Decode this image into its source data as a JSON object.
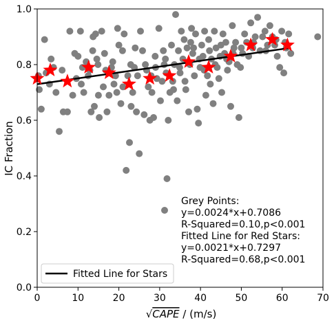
{
  "chart_data": {
    "type": "scatter",
    "xlabel_prefix": "√",
    "xlabel_var": "CAPE",
    "xlabel_suffix": " / (m/s)",
    "ylabel": "IC Fraction",
    "xlim": [
      0,
      70
    ],
    "ylim": [
      0.0,
      1.0
    ],
    "xticks": [
      "0",
      "10",
      "20",
      "30",
      "40",
      "50",
      "60",
      "70"
    ],
    "yticks": [
      "0.0",
      "0.2",
      "0.4",
      "0.6",
      "0.8",
      "1.0"
    ],
    "colors": {
      "grey": "#808080",
      "star": "#ff0000",
      "line": "#000000"
    },
    "grey_points": [
      [
        0.3,
        0.76
      ],
      [
        0.5,
        0.71
      ],
      [
        1.0,
        0.64
      ],
      [
        1.8,
        0.89
      ],
      [
        3.4,
        0.82
      ],
      [
        4.0,
        0.79
      ],
      [
        5.4,
        0.56
      ],
      [
        6.1,
        0.78
      ],
      [
        6.4,
        0.63
      ],
      [
        7.4,
        0.63
      ],
      [
        8.0,
        0.92
      ],
      [
        8.7,
        0.69
      ],
      [
        9.2,
        0.84
      ],
      [
        10.0,
        0.83
      ],
      [
        10.6,
        0.92
      ],
      [
        10.8,
        0.73
      ],
      [
        11.4,
        0.7
      ],
      [
        12.0,
        0.81
      ],
      [
        12.5,
        0.76
      ],
      [
        13.2,
        0.63
      ],
      [
        13.6,
        0.85
      ],
      [
        13.7,
        0.9
      ],
      [
        14.0,
        0.65
      ],
      [
        14.3,
        0.91
      ],
      [
        14.6,
        0.82
      ],
      [
        15.0,
        0.69
      ],
      [
        15.2,
        0.61
      ],
      [
        15.8,
        0.92
      ],
      [
        16.2,
        0.72
      ],
      [
        16.8,
        0.78
      ],
      [
        17.1,
        0.63
      ],
      [
        17.6,
        0.69
      ],
      [
        18.2,
        0.79
      ],
      [
        18.8,
        0.73
      ],
      [
        19.2,
        0.76
      ],
      [
        19.7,
        0.93
      ],
      [
        20.0,
        0.87
      ],
      [
        20.5,
        0.66
      ],
      [
        20.9,
        0.85
      ],
      [
        21.3,
        0.91
      ],
      [
        21.8,
        0.42
      ],
      [
        22.2,
        0.76
      ],
      [
        22.6,
        0.52
      ],
      [
        23.0,
        0.65
      ],
      [
        23.4,
        0.7
      ],
      [
        23.8,
        0.79
      ],
      [
        24.3,
        0.63
      ],
      [
        24.6,
        0.76
      ],
      [
        25.0,
        0.48
      ],
      [
        25.3,
        0.92
      ],
      [
        25.8,
        0.85
      ],
      [
        26.2,
        0.62
      ],
      [
        26.8,
        0.78
      ],
      [
        27.2,
        0.72
      ],
      [
        27.6,
        0.6
      ],
      [
        28.1,
        0.7
      ],
      [
        28.5,
        0.61
      ],
      [
        28.9,
        0.83
      ],
      [
        29.3,
        0.75
      ],
      [
        29.8,
        0.93
      ],
      [
        30.2,
        0.67
      ],
      [
        30.6,
        0.74
      ],
      [
        31.1,
        0.8
      ],
      [
        31.4,
        0.82
      ],
      [
        31.8,
        0.39
      ],
      [
        32.1,
        0.6
      ],
      [
        32.5,
        0.7
      ],
      [
        32.9,
        0.87
      ],
      [
        33.2,
        0.74
      ],
      [
        33.6,
        0.8
      ],
      [
        33.9,
        0.98
      ],
      [
        34.3,
        0.67
      ],
      [
        34.6,
        0.85
      ],
      [
        35.0,
        0.77
      ],
      [
        35.3,
        0.92
      ],
      [
        35.7,
        0.82
      ],
      [
        36.0,
        0.89
      ],
      [
        36.4,
        0.71
      ],
      [
        36.7,
        0.86
      ],
      [
        37.1,
        0.63
      ],
      [
        37.4,
        0.8
      ],
      [
        37.8,
        0.93
      ],
      [
        38.1,
        0.84
      ],
      [
        38.5,
        0.76
      ],
      [
        38.8,
        0.91
      ],
      [
        39.2,
        0.64
      ],
      [
        39.5,
        0.59
      ],
      [
        39.9,
        0.79
      ],
      [
        40.3,
        0.87
      ],
      [
        40.6,
        0.83
      ],
      [
        41.0,
        0.92
      ],
      [
        41.3,
        0.69
      ],
      [
        41.7,
        0.76
      ],
      [
        42.0,
        0.89
      ],
      [
        42.4,
        0.73
      ],
      [
        42.7,
        0.82
      ],
      [
        43.1,
        0.66
      ],
      [
        43.4,
        0.92
      ],
      [
        43.8,
        0.86
      ],
      [
        44.1,
        0.79
      ],
      [
        44.5,
        0.75
      ],
      [
        44.8,
        0.83
      ],
      [
        45.2,
        0.7
      ],
      [
        45.5,
        0.91
      ],
      [
        45.9,
        0.84
      ],
      [
        46.2,
        0.88
      ],
      [
        46.6,
        0.78
      ],
      [
        47.0,
        0.81
      ],
      [
        47.4,
        0.65
      ],
      [
        47.8,
        0.94
      ],
      [
        48.2,
        0.86
      ],
      [
        48.6,
        0.88
      ],
      [
        49.0,
        0.8
      ],
      [
        49.4,
        0.61
      ],
      [
        49.8,
        0.79
      ],
      [
        50.3,
        0.84
      ],
      [
        50.8,
        0.91
      ],
      [
        51.3,
        0.88
      ],
      [
        51.8,
        0.83
      ],
      [
        52.3,
        0.95
      ],
      [
        52.8,
        0.86
      ],
      [
        53.4,
        0.9
      ],
      [
        54.0,
        0.97
      ],
      [
        54.6,
        0.85
      ],
      [
        55.2,
        0.9
      ],
      [
        55.8,
        0.92
      ],
      [
        56.4,
        0.87
      ],
      [
        57.0,
        0.94
      ],
      [
        57.6,
        0.9
      ],
      [
        58.2,
        0.87
      ],
      [
        58.8,
        0.83
      ],
      [
        59.4,
        0.79
      ],
      [
        59.9,
        0.92
      ],
      [
        60.4,
        0.77
      ],
      [
        61.0,
        0.86
      ],
      [
        61.6,
        0.91
      ],
      [
        62.1,
        0.84
      ],
      [
        68.7,
        0.9
      ],
      [
        2.2,
        0.77
      ],
      [
        3.0,
        0.73
      ],
      [
        4.6,
        0.7
      ],
      [
        9.6,
        0.75
      ],
      [
        11.1,
        0.79
      ],
      [
        12.9,
        0.78
      ],
      [
        14.9,
        0.8
      ],
      [
        16.5,
        0.84
      ],
      [
        18.5,
        0.81
      ],
      [
        19.5,
        0.7
      ],
      [
        21.0,
        0.72
      ],
      [
        22.9,
        0.8
      ],
      [
        24.0,
        0.86
      ],
      [
        26.5,
        0.8
      ],
      [
        27.9,
        0.76
      ],
      [
        29.0,
        0.79
      ],
      [
        30.9,
        0.85
      ],
      [
        31.6,
        0.77
      ],
      [
        33.4,
        0.71
      ],
      [
        34.9,
        0.79
      ],
      [
        36.2,
        0.74
      ],
      [
        37.6,
        0.88
      ],
      [
        38.3,
        0.86
      ],
      [
        39.7,
        0.82
      ],
      [
        40.9,
        0.78
      ],
      [
        42.2,
        0.85
      ],
      [
        43.6,
        0.8
      ],
      [
        45.0,
        0.87
      ],
      [
        46.4,
        0.82
      ],
      [
        48.0,
        0.84
      ],
      [
        50.0,
        0.86
      ],
      [
        53.0,
        0.88
      ],
      [
        56.0,
        0.85
      ],
      [
        58.5,
        0.89
      ],
      [
        60.7,
        0.88
      ]
    ],
    "stars": [
      [
        0.0,
        0.75
      ],
      [
        3.2,
        0.78
      ],
      [
        7.4,
        0.74
      ],
      [
        12.6,
        0.79
      ],
      [
        17.6,
        0.77
      ],
      [
        22.5,
        0.73
      ],
      [
        27.6,
        0.75
      ],
      [
        32.4,
        0.76
      ],
      [
        37.1,
        0.81
      ],
      [
        42.0,
        0.79
      ],
      [
        47.4,
        0.83
      ],
      [
        52.3,
        0.87
      ],
      [
        57.6,
        0.89
      ],
      [
        61.3,
        0.87
      ]
    ],
    "fit_line": {
      "x": [
        0,
        62
      ],
      "y": [
        0.7297,
        0.86
      ]
    },
    "annotation_lines": [
      "Grey Points:",
      "y=0.0024*x+0.7086",
      "R-Squared=0.10,p<0.001",
      "Fitted Line for Red Stars:",
      "y=0.0021*x+0.7297",
      "R-Squared=0.68,p<0.001"
    ],
    "legend_label": "Fitted Line for Stars",
    "legend_position": "lower-left"
  }
}
